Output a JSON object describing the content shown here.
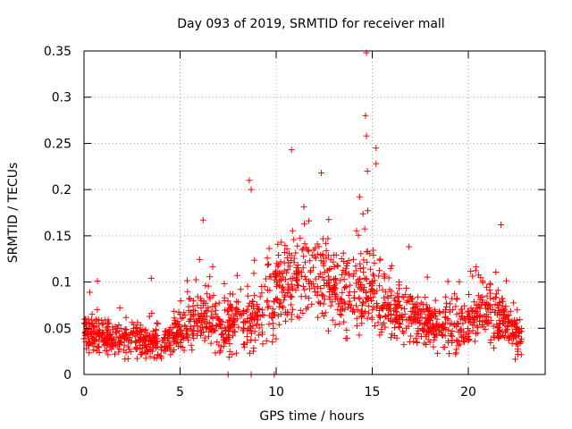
{
  "chart_data": {
    "type": "scatter",
    "title": "Day 093 of 2019, SRMTID for receiver mall",
    "xlabel": "GPS time / hours",
    "ylabel": "SRMTID / TECUs",
    "xlim": [
      0,
      24
    ],
    "ylim": [
      0,
      0.35
    ],
    "xticks": [
      0,
      5,
      10,
      15,
      20
    ],
    "xtick_labels": [
      "0",
      "5",
      "10",
      "15",
      "20"
    ],
    "yticks": [
      0,
      0.05,
      0.1,
      0.15,
      0.2,
      0.25,
      0.3,
      0.35
    ],
    "ytick_labels": [
      "0",
      "0.05",
      "0.1",
      "0.15",
      "0.2",
      "0.25",
      "0.3",
      "0.35"
    ],
    "grid": true,
    "marker": "+",
    "color": "#ff0000",
    "profile": [
      {
        "x": 0.0,
        "y": 0.045,
        "spread": 0.012
      },
      {
        "x": 1.0,
        "y": 0.04,
        "spread": 0.012
      },
      {
        "x": 2.0,
        "y": 0.038,
        "spread": 0.012
      },
      {
        "x": 3.0,
        "y": 0.037,
        "spread": 0.012
      },
      {
        "x": 4.0,
        "y": 0.032,
        "spread": 0.012
      },
      {
        "x": 5.0,
        "y": 0.048,
        "spread": 0.014
      },
      {
        "x": 6.0,
        "y": 0.06,
        "spread": 0.018
      },
      {
        "x": 7.0,
        "y": 0.055,
        "spread": 0.02
      },
      {
        "x": 8.0,
        "y": 0.055,
        "spread": 0.018
      },
      {
        "x": 9.0,
        "y": 0.06,
        "spread": 0.02
      },
      {
        "x": 10.0,
        "y": 0.095,
        "spread": 0.03
      },
      {
        "x": 11.0,
        "y": 0.11,
        "spread": 0.03
      },
      {
        "x": 12.0,
        "y": 0.11,
        "spread": 0.032
      },
      {
        "x": 13.0,
        "y": 0.09,
        "spread": 0.025
      },
      {
        "x": 14.0,
        "y": 0.09,
        "spread": 0.025
      },
      {
        "x": 15.0,
        "y": 0.09,
        "spread": 0.025
      },
      {
        "x": 16.0,
        "y": 0.07,
        "spread": 0.02
      },
      {
        "x": 17.0,
        "y": 0.065,
        "spread": 0.018
      },
      {
        "x": 18.0,
        "y": 0.055,
        "spread": 0.016
      },
      {
        "x": 19.0,
        "y": 0.05,
        "spread": 0.018
      },
      {
        "x": 20.0,
        "y": 0.06,
        "spread": 0.02
      },
      {
        "x": 21.0,
        "y": 0.07,
        "spread": 0.022
      },
      {
        "x": 22.0,
        "y": 0.05,
        "spread": 0.016
      },
      {
        "x": 22.8,
        "y": 0.035,
        "spread": 0.012
      }
    ],
    "notable_points": [
      {
        "x": 14.7,
        "y": 0.348
      },
      {
        "x": 14.65,
        "y": 0.28
      },
      {
        "x": 14.7,
        "y": 0.258
      },
      {
        "x": 15.2,
        "y": 0.245
      },
      {
        "x": 10.8,
        "y": 0.243
      },
      {
        "x": 12.35,
        "y": 0.218
      },
      {
        "x": 14.75,
        "y": 0.22
      },
      {
        "x": 8.6,
        "y": 0.21
      },
      {
        "x": 15.2,
        "y": 0.228
      },
      {
        "x": 8.7,
        "y": 0.2
      },
      {
        "x": 21.7,
        "y": 0.162
      },
      {
        "x": 6.2,
        "y": 0.167
      },
      {
        "x": 0.7,
        "y": 0.101
      },
      {
        "x": 3.5,
        "y": 0.104
      },
      {
        "x": 0.3,
        "y": 0.089
      }
    ],
    "zero_points": [
      {
        "x": 7.5,
        "y": 0.0
      },
      {
        "x": 8.7,
        "y": 0.0
      },
      {
        "x": 9.9,
        "y": 0.0
      }
    ]
  }
}
